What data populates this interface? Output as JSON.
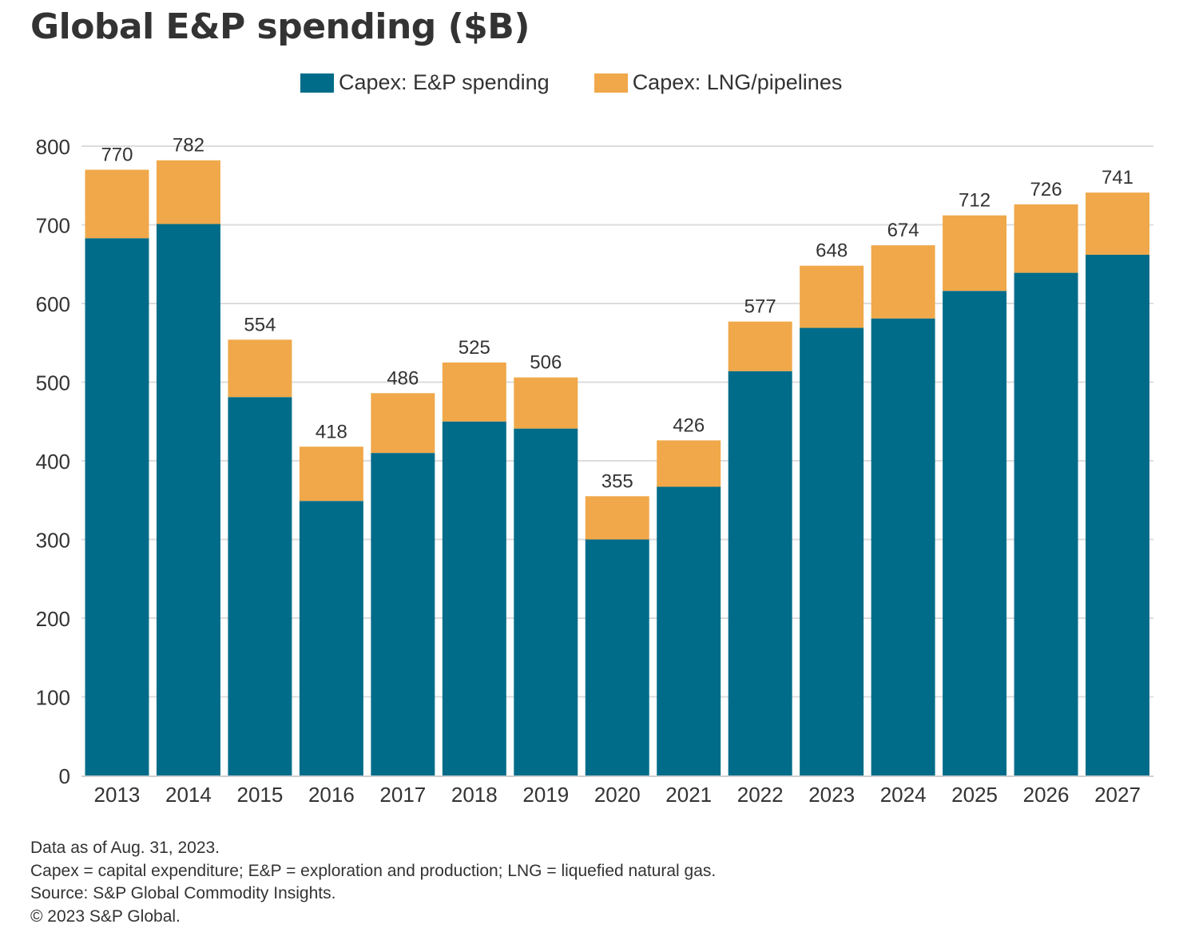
{
  "chart_data": {
    "type": "bar",
    "stacked": true,
    "title": "Global E&P spending ($B)",
    "categories": [
      "2013",
      "2014",
      "2015",
      "2016",
      "2017",
      "2018",
      "2019",
      "2020",
      "2021",
      "2022",
      "2023",
      "2024",
      "2025",
      "2026",
      "2027"
    ],
    "series": [
      {
        "name": "Capex: E&P spending",
        "color": "#006c89",
        "values": [
          683,
          701,
          481,
          349,
          410,
          450,
          441,
          300,
          367,
          514,
          569,
          581,
          616,
          639,
          662
        ]
      },
      {
        "name": "Capex: LNG/pipelines",
        "color": "#f0a84a",
        "values": [
          87,
          81,
          73,
          69,
          76,
          75,
          65,
          55,
          59,
          63,
          79,
          93,
          96,
          87,
          79
        ]
      }
    ],
    "totals": [
      770,
      782,
      554,
      418,
      486,
      525,
      506,
      355,
      426,
      577,
      648,
      674,
      712,
      726,
      741
    ],
    "yticks": [
      0,
      100,
      200,
      300,
      400,
      500,
      600,
      700,
      800
    ],
    "ylim": [
      0,
      800
    ],
    "grid": true,
    "legend_position": "top"
  },
  "footnotes": {
    "line1": "Data as of Aug. 31, 2023.",
    "line2": "Capex = capital expenditure; E&P = exploration and production; LNG = liquefied natural gas.",
    "line3": "Source: S&P Global Commodity Insights.",
    "line4": "© 2023 S&P Global."
  }
}
